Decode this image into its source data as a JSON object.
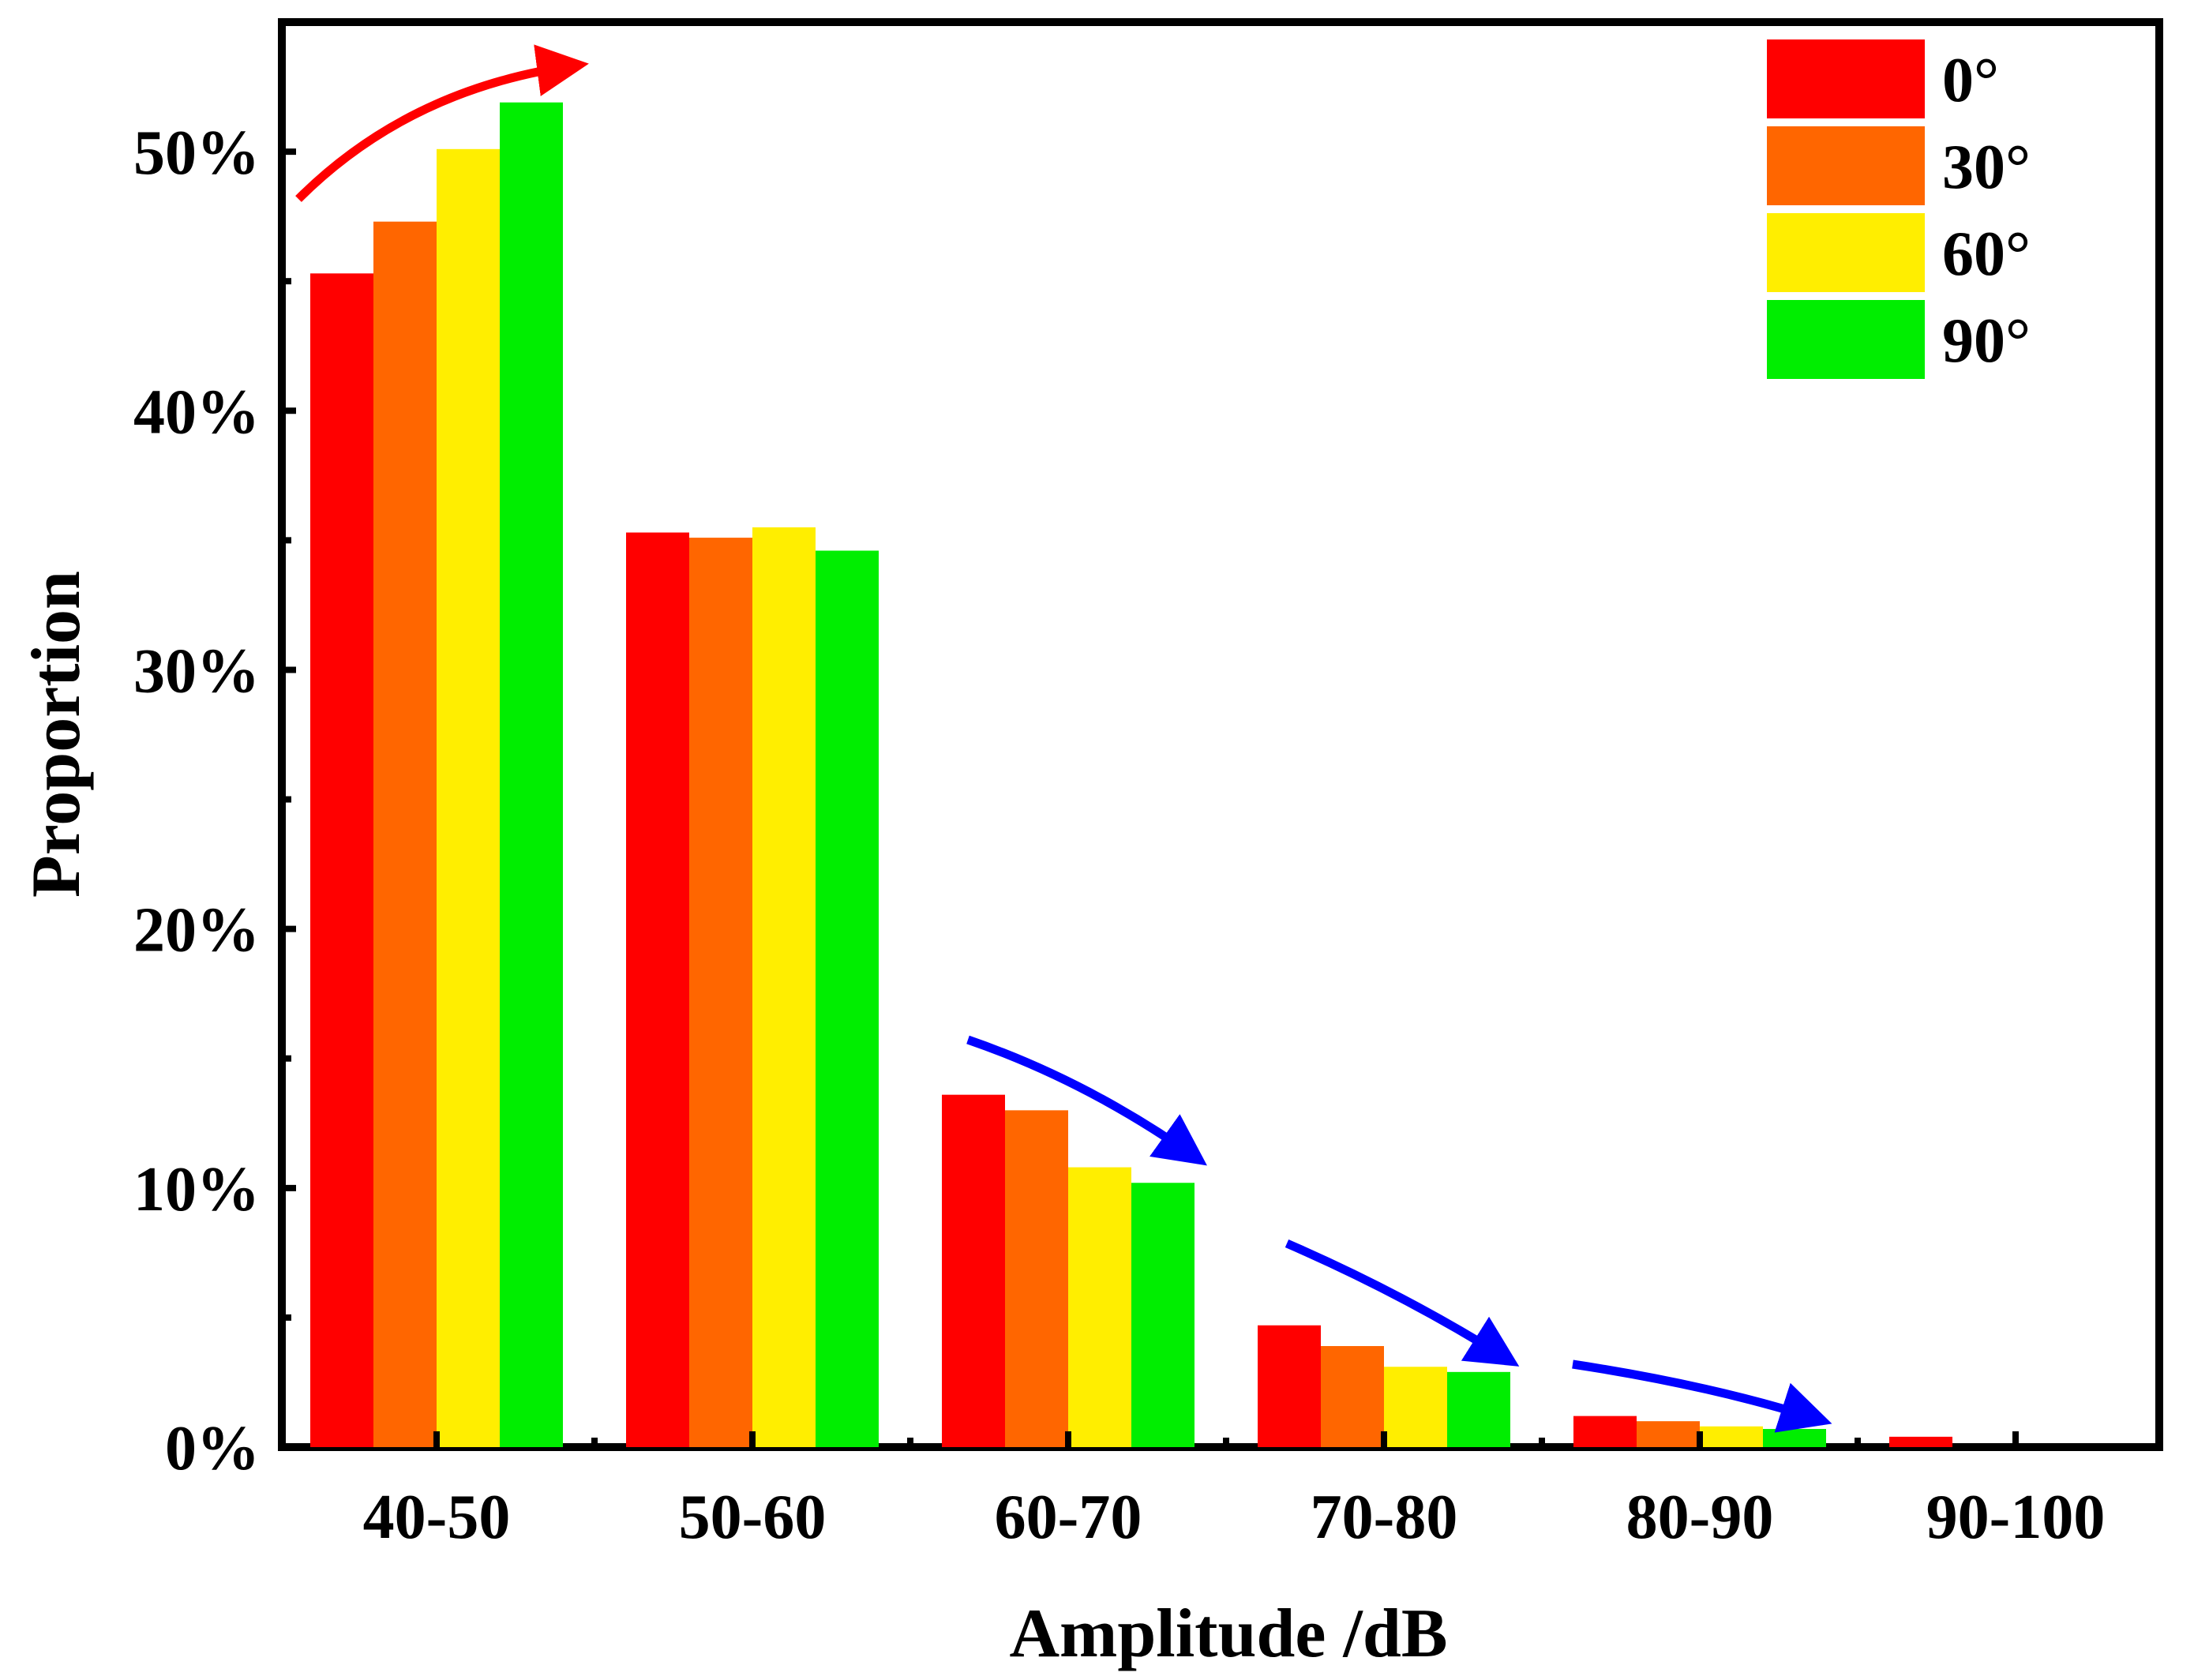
{
  "chart_data": {
    "type": "bar",
    "title": "",
    "xlabel": "Amplitude /dB",
    "ylabel": "Proportion",
    "categories": [
      "40-50",
      "50-60",
      "60-70",
      "70-80",
      "80-90",
      "90-100"
    ],
    "ylim": [
      0,
      55
    ],
    "yticks": [
      0,
      10,
      20,
      30,
      40,
      50
    ],
    "ytick_labels": [
      "0%",
      "10%",
      "20%",
      "30%",
      "40%",
      "50%"
    ],
    "grid": false,
    "legend_position": "top-right",
    "series": [
      {
        "name": "0°",
        "color": "#ff0000",
        "values": [
          45.3,
          35.3,
          13.6,
          4.7,
          1.2,
          0.4
        ]
      },
      {
        "name": "30°",
        "color": "#ff6600",
        "values": [
          47.3,
          35.1,
          13.0,
          3.9,
          1.0,
          0.0
        ]
      },
      {
        "name": "60°",
        "color": "#ffee00",
        "values": [
          50.1,
          35.5,
          10.8,
          3.1,
          0.8,
          0.0
        ]
      },
      {
        "name": "90°",
        "color": "#00ee00",
        "values": [
          51.9,
          34.6,
          10.2,
          2.9,
          0.7,
          0.0
        ]
      }
    ],
    "annotations": [
      {
        "name": "increase-arrow",
        "color": "#ff0000",
        "category": "40-50",
        "meaning": "increasing with angle"
      },
      {
        "name": "decrease-arrow-1",
        "color": "#0000ff",
        "category": "60-70",
        "meaning": "decreasing with angle"
      },
      {
        "name": "decrease-arrow-2",
        "color": "#0000ff",
        "category": "70-80",
        "meaning": "decreasing with angle"
      },
      {
        "name": "decrease-arrow-3",
        "color": "#0000ff",
        "category": "80-90",
        "meaning": "decreasing with angle"
      }
    ]
  }
}
